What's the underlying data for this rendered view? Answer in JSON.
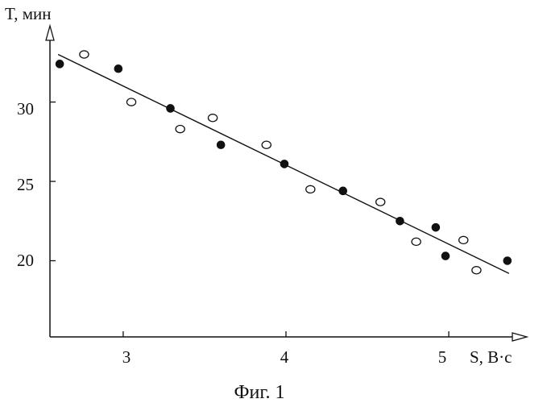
{
  "chart_data": {
    "type": "scatter",
    "title": "",
    "caption": "Фиг. 1",
    "ylabel": "T, мин",
    "xlabel": "S, B·c",
    "x_ticks": [
      "3",
      "4",
      "5"
    ],
    "y_ticks": [
      "20",
      "25",
      "30"
    ],
    "xlim": [
      2.55,
      5.45
    ],
    "ylim": [
      15.2,
      34.5
    ],
    "grid": false,
    "legend": "none",
    "colors": {
      "ink": "#111111",
      "background": "#ffffff"
    },
    "series": [
      {
        "marker": "filled-circle",
        "points": [
          [
            2.61,
            32.4
          ],
          [
            2.97,
            32.1
          ],
          [
            3.29,
            29.6
          ],
          [
            3.6,
            27.3
          ],
          [
            3.99,
            26.1
          ],
          [
            4.35,
            24.4
          ],
          [
            4.7,
            22.5
          ],
          [
            4.92,
            22.1
          ],
          [
            4.98,
            20.3
          ],
          [
            5.36,
            20.0
          ]
        ]
      },
      {
        "marker": "open-circle",
        "points": [
          [
            2.76,
            33.0
          ],
          [
            3.05,
            30.0
          ],
          [
            3.35,
            28.3
          ],
          [
            3.55,
            29.0
          ],
          [
            3.88,
            27.3
          ],
          [
            4.15,
            24.5
          ],
          [
            4.58,
            23.7
          ],
          [
            4.8,
            21.2
          ],
          [
            5.09,
            21.3
          ],
          [
            5.17,
            19.4
          ]
        ]
      }
    ],
    "trend_line": {
      "from": [
        2.6,
        33.0
      ],
      "to": [
        5.37,
        19.2
      ]
    }
  }
}
